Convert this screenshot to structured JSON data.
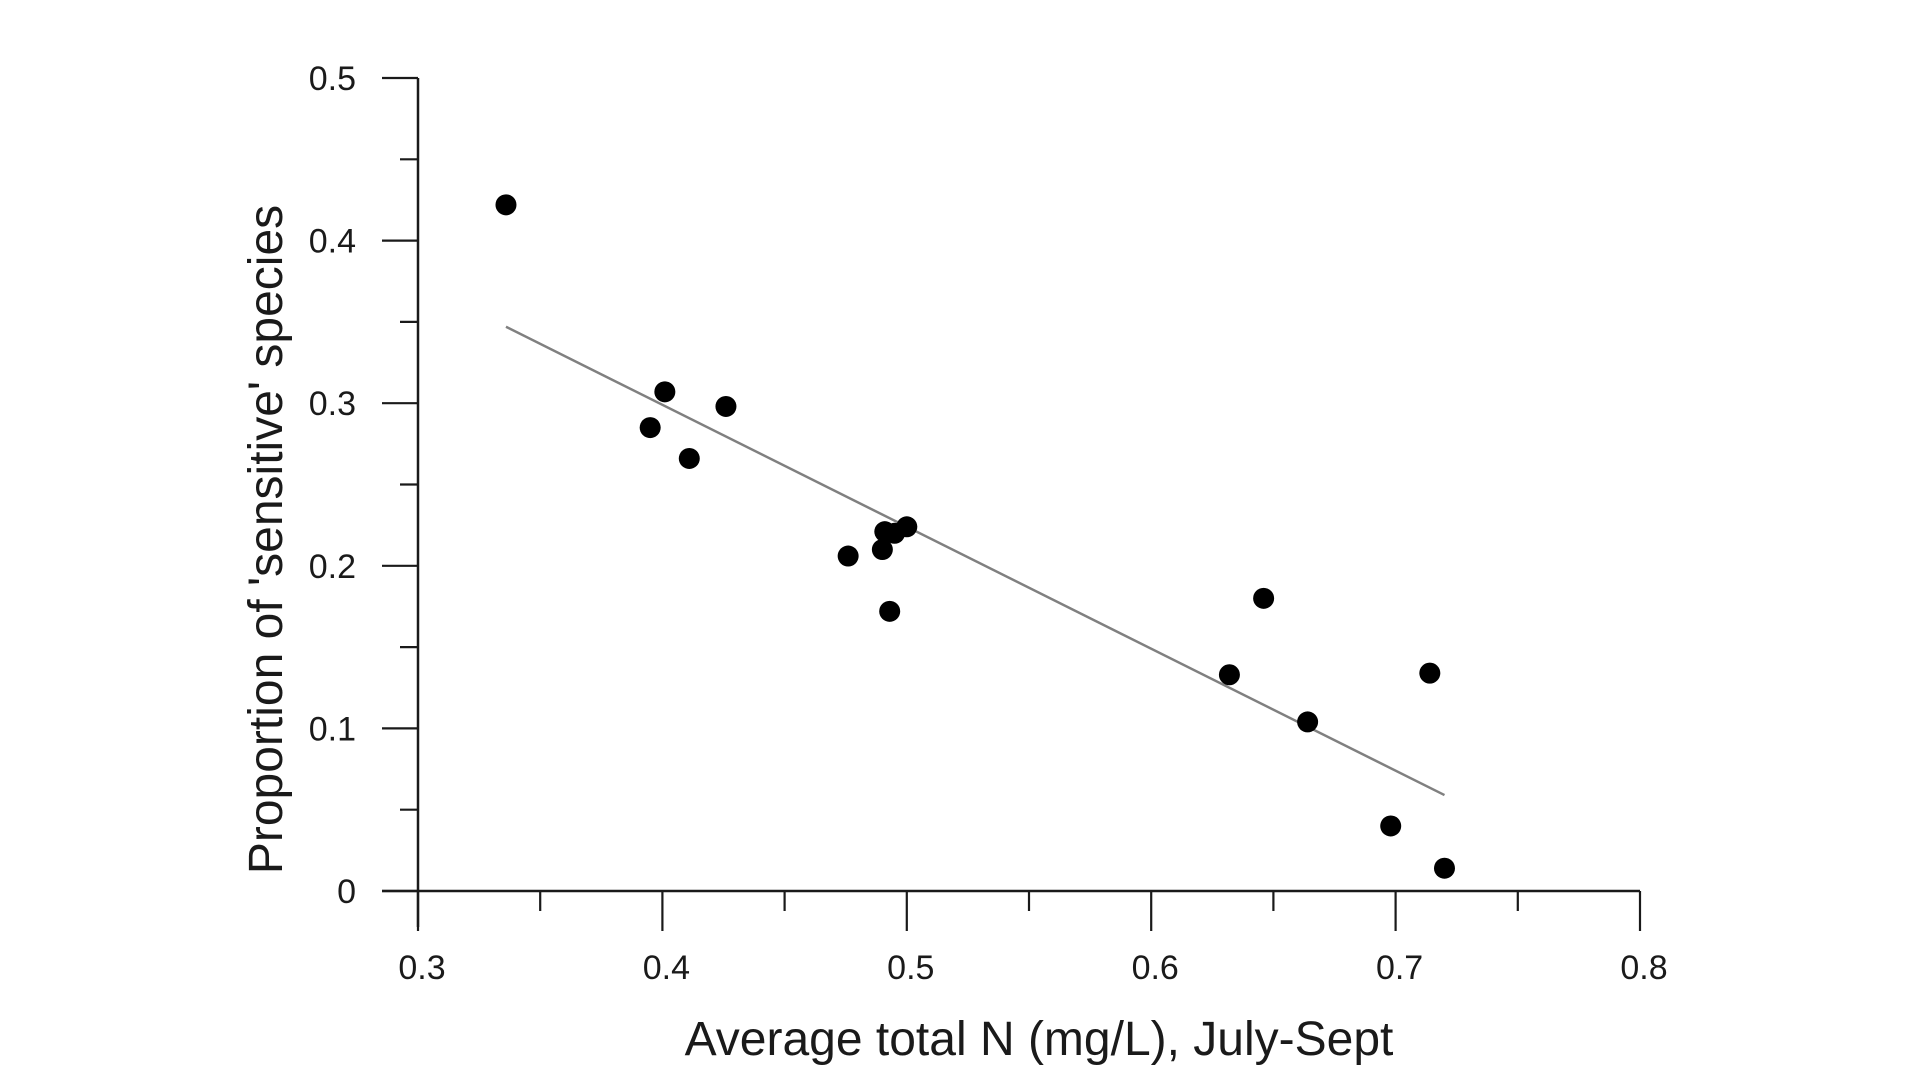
{
  "chart_data": {
    "type": "scatter",
    "title": "",
    "xlabel": "Average total N (mg/L), July-Sept",
    "ylabel": "Proportion of 'sensitive' species",
    "xlim": [
      0.3,
      0.8
    ],
    "ylim": [
      0,
      0.5
    ],
    "x_ticks": [
      0.3,
      0.4,
      0.5,
      0.6,
      0.7,
      0.8
    ],
    "x_tick_labels": [
      "0.3",
      "0.4",
      "0.5",
      "0.6",
      "0.7",
      "0.8"
    ],
    "y_ticks": [
      0,
      0.1,
      0.2,
      0.3,
      0.4,
      0.5
    ],
    "y_tick_labels": [
      "0",
      "0.1",
      "0.2",
      "0.3",
      "0.4",
      "0.5"
    ],
    "grid": false,
    "legend": "none",
    "colors": {
      "points": "#000000",
      "trendline": "#808080",
      "axes": "#1a1a1a"
    },
    "points": [
      {
        "x": 0.336,
        "y": 0.422
      },
      {
        "x": 0.395,
        "y": 0.285
      },
      {
        "x": 0.401,
        "y": 0.307
      },
      {
        "x": 0.411,
        "y": 0.266
      },
      {
        "x": 0.426,
        "y": 0.298
      },
      {
        "x": 0.476,
        "y": 0.206
      },
      {
        "x": 0.49,
        "y": 0.21
      },
      {
        "x": 0.491,
        "y": 0.221
      },
      {
        "x": 0.493,
        "y": 0.172
      },
      {
        "x": 0.495,
        "y": 0.22
      },
      {
        "x": 0.5,
        "y": 0.224
      },
      {
        "x": 0.632,
        "y": 0.133
      },
      {
        "x": 0.646,
        "y": 0.18
      },
      {
        "x": 0.664,
        "y": 0.104
      },
      {
        "x": 0.698,
        "y": 0.04
      },
      {
        "x": 0.714,
        "y": 0.134
      },
      {
        "x": 0.72,
        "y": 0.014
      }
    ],
    "trendline": {
      "type": "linear",
      "x": [
        0.336,
        0.72
      ],
      "y": [
        0.347,
        0.059
      ]
    }
  }
}
